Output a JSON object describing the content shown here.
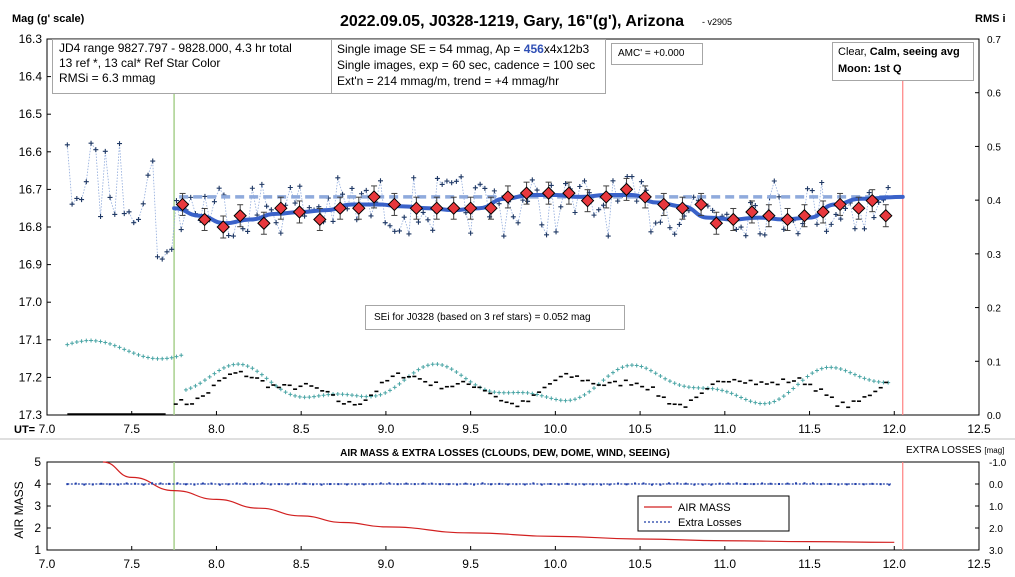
{
  "header": {
    "title": "2022.09.05, J0328-1219, Gary, 16\"(g'), Arizona",
    "version": "- v2905",
    "left_axis_label": "Mag (g' scale)",
    "right_axis_label": "RMS i",
    "ut_label": "UT="
  },
  "info_boxes": {
    "jd": [
      "JD4 range 9827.797 - 9828.000, 4.3 hr total",
      "13 ref *, 13 cal*  Ref Star Color",
      "RMSi = 6.3 mmag"
    ],
    "se_prefix": "Single image SE = 54 mmag, Ap = ",
    "se_ap": "456",
    "se_suffix": "x4x12b3",
    "se_line2": "Single images, exp = 60 sec, cadence = 100 sec",
    "se_line3": "Ext'n = 214 mmag/m, trend = +4 mmag/hr",
    "amc": "AMC' = +0.000",
    "weather_1a": "Clear, ",
    "weather_1b": "Calm, seeing avg",
    "weather_2": "Moon: 1st Q",
    "sei": "SEi for J0328 (based on 3 ref stars) = 0.052 mag"
  },
  "bottom": {
    "title": "AIR MASS & EXTRA LOSSES (CLOUDS, DEW, DOME, WIND, SEEING)",
    "right_label_main": "EXTRA LOSSES",
    "right_label_unit": "[mag]",
    "left_label": "AIR MASS",
    "legend_airmass": "AIR MASS",
    "legend_losses": "Extra Losses"
  },
  "colors": {
    "marker_fill": "#e8383d",
    "trend": "#3a62c9",
    "dashed_ref": "#8faadc",
    "points": "#1f3864",
    "rms": "#4aa5a5",
    "air_mass": "#d22020",
    "losses": "#1f3da8",
    "v_green": "#a9d18e",
    "v_red": "#ff8080"
  },
  "chart_data": [
    {
      "type": "scatter",
      "x_axis_label": "UT=",
      "x_ticks": [
        "7.0",
        "7.5",
        "8.0",
        "8.5",
        "9.0",
        "9.5",
        "10.0",
        "10.5",
        "11.0",
        "11.5",
        "12.0",
        "12.5"
      ],
      "xlim": [
        7.0,
        12.5
      ],
      "y_ticks_left": [
        "16.3",
        "16.4",
        "16.5",
        "16.6",
        "16.7",
        "16.8",
        "16.9",
        "17.0",
        "17.1",
        "17.2",
        "17.3"
      ],
      "ylim_left": [
        16.3,
        17.3
      ],
      "y_ticks_right": [
        "0.7",
        "0.6",
        "0.5",
        "0.4",
        "0.3",
        "0.2",
        "0.1",
        "0.0"
      ],
      "ylim_right": [
        0.0,
        0.7
      ],
      "vertical_lines": [
        7.75,
        12.05
      ],
      "reference_mag": 16.72,
      "single_image_range": [
        7.12,
        11.98
      ],
      "binned_points": [
        {
          "x": 7.8,
          "y": 16.74
        },
        {
          "x": 7.93,
          "y": 16.78
        },
        {
          "x": 8.04,
          "y": 16.8
        },
        {
          "x": 8.14,
          "y": 16.77
        },
        {
          "x": 8.28,
          "y": 16.79
        },
        {
          "x": 8.38,
          "y": 16.75
        },
        {
          "x": 8.49,
          "y": 16.76
        },
        {
          "x": 8.61,
          "y": 16.78
        },
        {
          "x": 8.73,
          "y": 16.75
        },
        {
          "x": 8.84,
          "y": 16.75
        },
        {
          "x": 8.93,
          "y": 16.72
        },
        {
          "x": 9.05,
          "y": 16.74
        },
        {
          "x": 9.18,
          "y": 16.75
        },
        {
          "x": 9.3,
          "y": 16.75
        },
        {
          "x": 9.4,
          "y": 16.75
        },
        {
          "x": 9.5,
          "y": 16.75
        },
        {
          "x": 9.62,
          "y": 16.75
        },
        {
          "x": 9.72,
          "y": 16.72
        },
        {
          "x": 9.83,
          "y": 16.71
        },
        {
          "x": 9.96,
          "y": 16.71
        },
        {
          "x": 10.08,
          "y": 16.71
        },
        {
          "x": 10.19,
          "y": 16.73
        },
        {
          "x": 10.3,
          "y": 16.72
        },
        {
          "x": 10.42,
          "y": 16.7
        },
        {
          "x": 10.53,
          "y": 16.72
        },
        {
          "x": 10.64,
          "y": 16.74
        },
        {
          "x": 10.75,
          "y": 16.75
        },
        {
          "x": 10.86,
          "y": 16.74
        },
        {
          "x": 10.95,
          "y": 16.79
        },
        {
          "x": 11.05,
          "y": 16.78
        },
        {
          "x": 11.16,
          "y": 16.76
        },
        {
          "x": 11.26,
          "y": 16.77
        },
        {
          "x": 11.37,
          "y": 16.78
        },
        {
          "x": 11.47,
          "y": 16.77
        },
        {
          "x": 11.58,
          "y": 16.76
        },
        {
          "x": 11.68,
          "y": 16.74
        },
        {
          "x": 11.79,
          "y": 16.75
        },
        {
          "x": 11.87,
          "y": 16.73
        },
        {
          "x": 11.95,
          "y": 16.77
        }
      ],
      "trend_curve": [
        {
          "x": 7.75,
          "y": 16.75
        },
        {
          "x": 7.9,
          "y": 16.77
        },
        {
          "x": 8.05,
          "y": 16.79
        },
        {
          "x": 8.2,
          "y": 16.78
        },
        {
          "x": 8.35,
          "y": 16.765
        },
        {
          "x": 8.5,
          "y": 16.76
        },
        {
          "x": 8.65,
          "y": 16.755
        },
        {
          "x": 8.8,
          "y": 16.74
        },
        {
          "x": 8.95,
          "y": 16.74
        },
        {
          "x": 9.1,
          "y": 16.745
        },
        {
          "x": 9.25,
          "y": 16.75
        },
        {
          "x": 9.4,
          "y": 16.755
        },
        {
          "x": 9.55,
          "y": 16.75
        },
        {
          "x": 9.7,
          "y": 16.725
        },
        {
          "x": 9.85,
          "y": 16.715
        },
        {
          "x": 10.0,
          "y": 16.715
        },
        {
          "x": 10.15,
          "y": 16.72
        },
        {
          "x": 10.3,
          "y": 16.715
        },
        {
          "x": 10.45,
          "y": 16.715
        },
        {
          "x": 10.6,
          "y": 16.735
        },
        {
          "x": 10.75,
          "y": 16.745
        },
        {
          "x": 10.9,
          "y": 16.775
        },
        {
          "x": 11.05,
          "y": 16.78
        },
        {
          "x": 11.2,
          "y": 16.775
        },
        {
          "x": 11.35,
          "y": 16.78
        },
        {
          "x": 11.5,
          "y": 16.775
        },
        {
          "x": 11.65,
          "y": 16.74
        },
        {
          "x": 11.8,
          "y": 16.725
        },
        {
          "x": 12.05,
          "y": 16.72
        }
      ]
    },
    {
      "type": "line",
      "title": "AIR MASS & EXTRA LOSSES (CLOUDS, DEW, DOME, WIND, SEEING)",
      "x_ticks": [
        "7.0",
        "7.5",
        "8.0",
        "8.5",
        "9.0",
        "9.5",
        "10.0",
        "10.5",
        "11.0",
        "11.5",
        "12.0",
        "12.5"
      ],
      "xlim": [
        7.0,
        12.5
      ],
      "y_ticks_left": [
        "5",
        "4",
        "3",
        "2",
        "1"
      ],
      "ylim_left": [
        1,
        5
      ],
      "y_ticks_right": [
        "-1.0",
        "0.0",
        "1.0",
        "2.0",
        "3.0"
      ],
      "ylim_right": [
        -1.0,
        3.0
      ],
      "vertical_lines": [
        7.75,
        12.05
      ],
      "series": [
        {
          "name": "AIR MASS",
          "x": [
            7.33,
            7.5,
            7.75,
            8.0,
            8.25,
            8.5,
            8.75,
            9.0,
            9.5,
            10.0,
            10.5,
            11.0,
            11.5,
            12.0
          ],
          "values": [
            5.0,
            4.3,
            3.7,
            3.3,
            2.9,
            2.55,
            2.25,
            2.05,
            1.78,
            1.62,
            1.5,
            1.42,
            1.38,
            1.35
          ]
        },
        {
          "name": "Extra Losses",
          "x": [
            7.12,
            11.98
          ],
          "values": [
            0.0,
            0.0
          ]
        }
      ]
    }
  ]
}
